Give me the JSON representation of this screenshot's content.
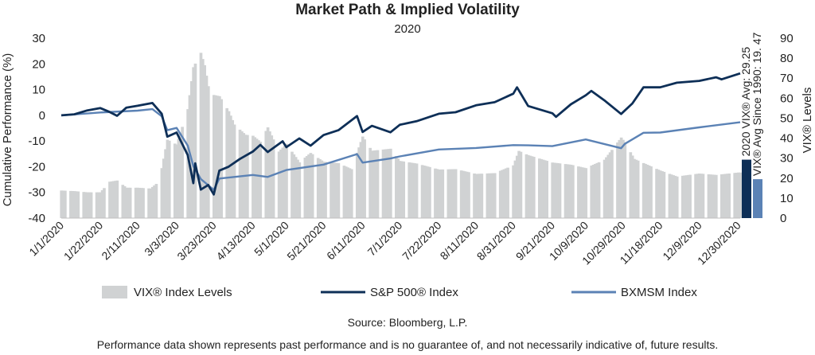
{
  "chart_data": {
    "type": "line",
    "title": "Market Path & Implied Volatility",
    "subtitle": "2020",
    "ylabel_left": "Cumulative Performance (%)",
    "ylabel_right": "VIX® Levels",
    "ylim_left": [
      -40,
      30
    ],
    "ylim_right": [
      0,
      90
    ],
    "yticks_left": [
      "30",
      "20",
      "10",
      "0",
      "-10",
      "-20",
      "-30",
      "-40"
    ],
    "yticks_right": [
      "90",
      "80",
      "70",
      "60",
      "50",
      "40",
      "30",
      "20",
      "10",
      "0"
    ],
    "x_tick_labels": [
      "1/1/2020",
      "1/22/2020",
      "2/11/2020",
      "3/3/2020",
      "3/23/2020",
      "4/13/2020",
      "5/1/2020",
      "5/21/2020",
      "6/11/2020",
      "7/1/2020",
      "7/22/2020",
      "8/11/2020",
      "8/31/2020",
      "9/21/2020",
      "10/9/2020",
      "10/29/2020",
      "11/18/2020",
      "12/9/2020",
      "12/30/2020"
    ],
    "series": [
      {
        "name": "VIX® Index Levels",
        "kind": "bar",
        "axis": "right",
        "color": "#d0d2d3",
        "points": [
          [
            "1/1/2020",
            13.8
          ],
          [
            "1/8/2020",
            13.5
          ],
          [
            "1/15/2020",
            12.9
          ],
          [
            "1/22/2020",
            12.9
          ],
          [
            "1/27/2020",
            18.2
          ],
          [
            "1/31/2020",
            18.8
          ],
          [
            "2/5/2020",
            15.2
          ],
          [
            "2/11/2020",
            15.2
          ],
          [
            "2/18/2020",
            14.8
          ],
          [
            "2/21/2020",
            17.1
          ],
          [
            "2/24/2020",
            25.0
          ],
          [
            "2/27/2020",
            39.2
          ],
          [
            "3/3/2020",
            36.8
          ],
          [
            "3/9/2020",
            54.5
          ],
          [
            "3/12/2020",
            75.5
          ],
          [
            "3/16/2020",
            82.7
          ],
          [
            "3/18/2020",
            76.5
          ],
          [
            "3/20/2020",
            66.0
          ],
          [
            "3/23/2020",
            61.6
          ],
          [
            "3/26/2020",
            61.0
          ],
          [
            "3/31/2020",
            53.5
          ],
          [
            "4/3/2020",
            46.8
          ],
          [
            "4/9/2020",
            41.7
          ],
          [
            "4/13/2020",
            41.2
          ],
          [
            "4/17/2020",
            38.2
          ],
          [
            "4/21/2020",
            45.4
          ],
          [
            "4/27/2020",
            33.3
          ],
          [
            "5/1/2020",
            37.2
          ],
          [
            "5/8/2020",
            27.9
          ],
          [
            "5/14/2020",
            32.6
          ],
          [
            "5/21/2020",
            28.2
          ],
          [
            "5/29/2020",
            27.5
          ],
          [
            "6/5/2020",
            24.5
          ],
          [
            "6/11/2020",
            40.8
          ],
          [
            "6/16/2020",
            33.7
          ],
          [
            "6/26/2020",
            34.7
          ],
          [
            "7/1/2020",
            28.6
          ],
          [
            "7/10/2020",
            27.3
          ],
          [
            "7/22/2020",
            24.3
          ],
          [
            "7/31/2020",
            24.5
          ],
          [
            "8/11/2020",
            22.1
          ],
          [
            "8/21/2020",
            22.5
          ],
          [
            "8/31/2020",
            26.4
          ],
          [
            "9/3/2020",
            33.6
          ],
          [
            "9/8/2020",
            31.5
          ],
          [
            "9/21/2020",
            27.8
          ],
          [
            "10/1/2020",
            26.7
          ],
          [
            "10/9/2020",
            25.0
          ],
          [
            "10/19/2020",
            29.2
          ],
          [
            "10/28/2020",
            40.3
          ],
          [
            "10/30/2020",
            38.0
          ],
          [
            "11/4/2020",
            29.6
          ],
          [
            "11/18/2020",
            23.8
          ],
          [
            "11/27/2020",
            20.8
          ],
          [
            "12/9/2020",
            22.3
          ],
          [
            "12/18/2020",
            21.6
          ],
          [
            "12/30/2020",
            22.8
          ],
          [
            "12/31/2020",
            22.8
          ]
        ]
      },
      {
        "name": "S&P 500® Index",
        "kind": "line",
        "axis": "left",
        "color": "#0e2f57",
        "points": [
          [
            "1/1/2020",
            0.0
          ],
          [
            "1/8/2020",
            0.4
          ],
          [
            "1/15/2020",
            1.9
          ],
          [
            "1/22/2020",
            2.8
          ],
          [
            "1/27/2020",
            1.3
          ],
          [
            "1/31/2020",
            -0.2
          ],
          [
            "2/5/2020",
            3.0
          ],
          [
            "2/11/2020",
            3.7
          ],
          [
            "2/19/2020",
            4.8
          ],
          [
            "2/24/2020",
            0.6
          ],
          [
            "2/27/2020",
            -8.3
          ],
          [
            "3/3/2020",
            -6.7
          ],
          [
            "3/9/2020",
            -15.5
          ],
          [
            "3/12/2020",
            -26.4
          ],
          [
            "3/13/2020",
            -18.7
          ],
          [
            "3/16/2020",
            -28.9
          ],
          [
            "3/20/2020",
            -27.1
          ],
          [
            "3/23/2020",
            -30.8
          ],
          [
            "3/26/2020",
            -21.5
          ],
          [
            "3/31/2020",
            -20.0
          ],
          [
            "4/6/2020",
            -17.0
          ],
          [
            "4/13/2020",
            -14.1
          ],
          [
            "4/17/2020",
            -11.5
          ],
          [
            "4/21/2020",
            -14.3
          ],
          [
            "4/29/2020",
            -10.1
          ],
          [
            "5/1/2020",
            -12.4
          ],
          [
            "5/8/2020",
            -9.0
          ],
          [
            "5/14/2020",
            -11.8
          ],
          [
            "5/21/2020",
            -7.7
          ],
          [
            "5/29/2020",
            -5.8
          ],
          [
            "6/8/2020",
            -0.3
          ],
          [
            "6/11/2020",
            -6.5
          ],
          [
            "6/16/2020",
            -4.1
          ],
          [
            "6/26/2020",
            -6.6
          ],
          [
            "7/1/2020",
            -3.7
          ],
          [
            "7/10/2020",
            -2.3
          ],
          [
            "7/22/2020",
            0.6
          ],
          [
            "7/31/2020",
            1.2
          ],
          [
            "8/11/2020",
            3.9
          ],
          [
            "8/21/2020",
            5.1
          ],
          [
            "8/31/2020",
            8.4
          ],
          [
            "9/2/2020",
            10.9
          ],
          [
            "9/8/2020",
            3.6
          ],
          [
            "9/21/2020",
            0.8
          ],
          [
            "9/23/2020",
            -0.6
          ],
          [
            "10/1/2020",
            4.3
          ],
          [
            "10/9/2020",
            7.8
          ],
          [
            "10/12/2020",
            9.5
          ],
          [
            "10/19/2020",
            5.8
          ],
          [
            "10/28/2020",
            0.5
          ],
          [
            "11/3/2020",
            4.6
          ],
          [
            "11/9/2020",
            10.9
          ],
          [
            "11/18/2020",
            10.9
          ],
          [
            "11/27/2020",
            12.7
          ],
          [
            "12/9/2020",
            13.4
          ],
          [
            "12/18/2020",
            14.8
          ],
          [
            "12/21/2020",
            14.0
          ],
          [
            "12/31/2020",
            16.3
          ]
        ]
      },
      {
        "name": "BXMSM Index",
        "kind": "line",
        "axis": "left",
        "color": "#5b82b5",
        "points": [
          [
            "1/1/2020",
            0.0
          ],
          [
            "1/22/2020",
            1.1
          ],
          [
            "2/11/2020",
            1.8
          ],
          [
            "2/19/2020",
            2.4
          ],
          [
            "2/24/2020",
            -0.4
          ],
          [
            "2/27/2020",
            -5.8
          ],
          [
            "3/3/2020",
            -4.9
          ],
          [
            "3/9/2020",
            -11.8
          ],
          [
            "3/12/2020",
            -19.7
          ],
          [
            "3/16/2020",
            -24.8
          ],
          [
            "3/23/2020",
            -29.0
          ],
          [
            "3/26/2020",
            -24.6
          ],
          [
            "4/13/2020",
            -23.2
          ],
          [
            "4/21/2020",
            -24.0
          ],
          [
            "5/1/2020",
            -21.3
          ],
          [
            "5/21/2020",
            -19.2
          ],
          [
            "6/8/2020",
            -15.1
          ],
          [
            "6/11/2020",
            -18.4
          ],
          [
            "6/26/2020",
            -16.8
          ],
          [
            "7/1/2020",
            -16.0
          ],
          [
            "7/22/2020",
            -13.3
          ],
          [
            "8/11/2020",
            -12.7
          ],
          [
            "8/31/2020",
            -11.6
          ],
          [
            "9/8/2020",
            -11.7
          ],
          [
            "9/21/2020",
            -12.0
          ],
          [
            "10/9/2020",
            -9.4
          ],
          [
            "10/28/2020",
            -12.8
          ],
          [
            "10/30/2020",
            -11.1
          ],
          [
            "11/9/2020",
            -6.8
          ],
          [
            "11/18/2020",
            -6.7
          ],
          [
            "12/9/2020",
            -4.7
          ],
          [
            "12/31/2020",
            -2.7
          ]
        ]
      }
    ],
    "side_bars": [
      {
        "label": "2020 VIX® Avg: 29.25",
        "value": 29.25,
        "color": "#0e2f57"
      },
      {
        "label": "VIX® Avg Since 1990: 19. 47",
        "value": 19.47,
        "color": "#5b82b5"
      }
    ],
    "legend": [
      {
        "label": "VIX® Index Levels",
        "swatch": "block",
        "color": "#d0d2d3"
      },
      {
        "label": "S&P 500® Index",
        "swatch": "line",
        "color": "#0e2f57"
      },
      {
        "label": "BXMSM Index",
        "swatch": "line",
        "color": "#5b82b5"
      }
    ],
    "legend_position": "bottom",
    "grid": false
  },
  "source_note": "Source: Bloomberg, L.P.",
  "disclaimer": "Performance data shown represents past performance and is no guarantee of, and not necessarily indicative of, future results."
}
